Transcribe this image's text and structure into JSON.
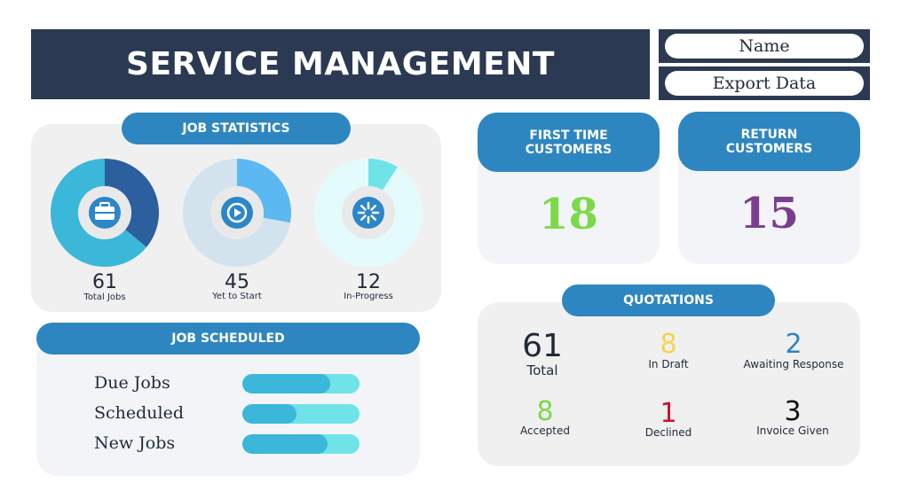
{
  "header": {
    "title": "SERVICE MANAGEMENT"
  },
  "actions": {
    "name_label": "Name",
    "export_label": "Export Data"
  },
  "job_statistics": {
    "title": "JOB STATISTICS",
    "items": [
      {
        "value": "61",
        "label": "Total Jobs",
        "fraction": 0.36,
        "icon": "briefcase-icon",
        "primary": "#2c5f9e",
        "secondary": "#3ab7d9"
      },
      {
        "value": "45",
        "label": "Yet to Start",
        "fraction": 0.28,
        "icon": "play-icon",
        "primary": "#5bb8f0",
        "secondary": "#d2e3ee"
      },
      {
        "value": "12",
        "label": "In-Progress",
        "fraction": 0.09,
        "icon": "loading-icon",
        "primary": "#6fe3e8",
        "secondary": "#e3fbfc"
      }
    ]
  },
  "job_scheduled": {
    "title": "JOB SCHEDULED",
    "rows": [
      {
        "label": "Due Jobs",
        "fraction": 0.75
      },
      {
        "label": "Scheduled",
        "fraction": 0.46
      },
      {
        "label": "New Jobs",
        "fraction": 0.73
      }
    ]
  },
  "first_time": {
    "title_line1": "FIRST TIME",
    "title_line2": "CUSTOMERS",
    "value": "18",
    "color": "#7cd94a"
  },
  "return_customers": {
    "title_line1": "RETURN",
    "title_line2": "CUSTOMERS",
    "value": "15",
    "color": "#7a3e8e"
  },
  "quotations": {
    "title": "QUOTATIONS",
    "items": [
      {
        "value": "61",
        "label": "Total",
        "color": "#1f2a3a"
      },
      {
        "value": "8",
        "label": "In Draft",
        "color": "#f5d547"
      },
      {
        "value": "2",
        "label": "Awaiting Response",
        "color": "#2e86c1"
      },
      {
        "value": "8",
        "label": "Accepted",
        "color": "#7cd94a"
      },
      {
        "value": "1",
        "label": "Declined",
        "color": "#c8102e"
      },
      {
        "value": "3",
        "label": "Invoice Given",
        "color": "#111111"
      }
    ]
  }
}
